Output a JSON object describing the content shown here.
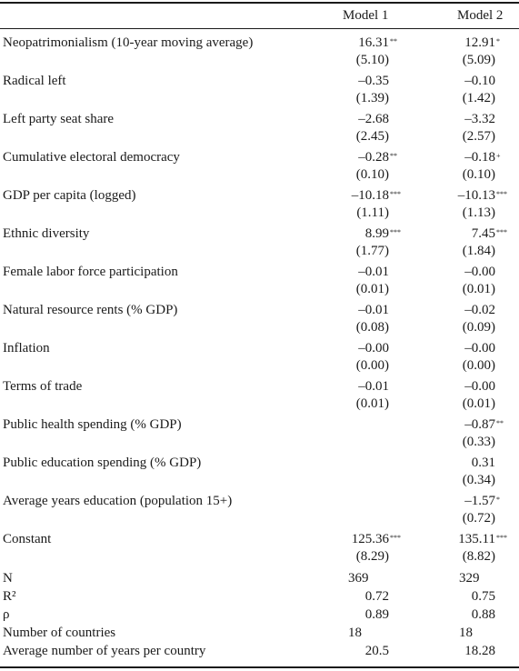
{
  "headers": {
    "model1": "Model 1",
    "model2": "Model 2"
  },
  "rows": [
    {
      "label": "Neopatrimonialism (10-year moving average)",
      "m1": "16.31",
      "m1_sig": "**",
      "m1_se": "(5.10)",
      "m2": "12.91",
      "m2_sig": "*",
      "m2_se": "(5.09)"
    },
    {
      "label": "Radical left",
      "m1": "–0.35",
      "m1_sig": "",
      "m1_se": "(1.39)",
      "m2": "–0.10",
      "m2_sig": "",
      "m2_se": "(1.42)"
    },
    {
      "label": "Left party seat share",
      "m1": "–2.68",
      "m1_sig": "",
      "m1_se": "(2.45)",
      "m2": "–3.32",
      "m2_sig": "",
      "m2_se": "(2.57)"
    },
    {
      "label": "Cumulative electoral democracy",
      "m1": "–0.28",
      "m1_sig": "**",
      "m1_se": "(0.10)",
      "m2": "–0.18",
      "m2_sig": "+",
      "m2_se": "(0.10)"
    },
    {
      "label": "GDP per capita (logged)",
      "m1": "–10.18",
      "m1_sig": "***",
      "m1_se": "(1.11)",
      "m2": "–10.13",
      "m2_sig": "***",
      "m2_se": "(1.13)"
    },
    {
      "label": "Ethnic diversity",
      "m1": "8.99",
      "m1_sig": "***",
      "m1_se": "(1.77)",
      "m2": "7.45",
      "m2_sig": "***",
      "m2_se": "(1.84)"
    },
    {
      "label": "Female labor force participation",
      "m1": "–0.01",
      "m1_sig": "",
      "m1_se": "(0.01)",
      "m2": "–0.00",
      "m2_sig": "",
      "m2_se": "(0.01)"
    },
    {
      "label": "Natural resource rents (% GDP)",
      "m1": "–0.01",
      "m1_sig": "",
      "m1_se": "(0.08)",
      "m2": "–0.02",
      "m2_sig": "",
      "m2_se": "(0.09)"
    },
    {
      "label": "Inflation",
      "m1": "–0.00",
      "m1_sig": "",
      "m1_se": "(0.00)",
      "m2": "–0.00",
      "m2_sig": "",
      "m2_se": "(0.00)"
    },
    {
      "label": "Terms of trade",
      "m1": "–0.01",
      "m1_sig": "",
      "m1_se": "(0.01)",
      "m2": "–0.00",
      "m2_sig": "",
      "m2_se": "(0.01)"
    },
    {
      "label": "Public health spending (% GDP)",
      "m1": "",
      "m1_sig": "",
      "m1_se": "",
      "m2": "–0.87",
      "m2_sig": "**",
      "m2_se": "(0.33)"
    },
    {
      "label": "Public education spending (% GDP)",
      "m1": "",
      "m1_sig": "",
      "m1_se": "",
      "m2": "0.31",
      "m2_sig": "",
      "m2_se": "(0.34)"
    },
    {
      "label": "Average years education (population 15+)",
      "m1": "",
      "m1_sig": "",
      "m1_se": "",
      "m2": "–1.57",
      "m2_sig": "*",
      "m2_se": "(0.72)"
    },
    {
      "label": "Constant",
      "m1": "125.36",
      "m1_sig": "***",
      "m1_se": "(8.29)",
      "m2": "135.11",
      "m2_sig": "***",
      "m2_se": "(8.82)"
    }
  ],
  "stats": [
    {
      "label": "N",
      "m1": "369",
      "m2": "329"
    },
    {
      "label": "R²",
      "m1": "0.72",
      "m2": "0.75"
    },
    {
      "label": "ρ",
      "m1": "0.89",
      "m2": "0.88"
    },
    {
      "label": "Number of countries",
      "m1": "18",
      "m2": "18"
    },
    {
      "label": "Average number of years per country",
      "m1": "20.5",
      "m2": "18.28"
    }
  ]
}
